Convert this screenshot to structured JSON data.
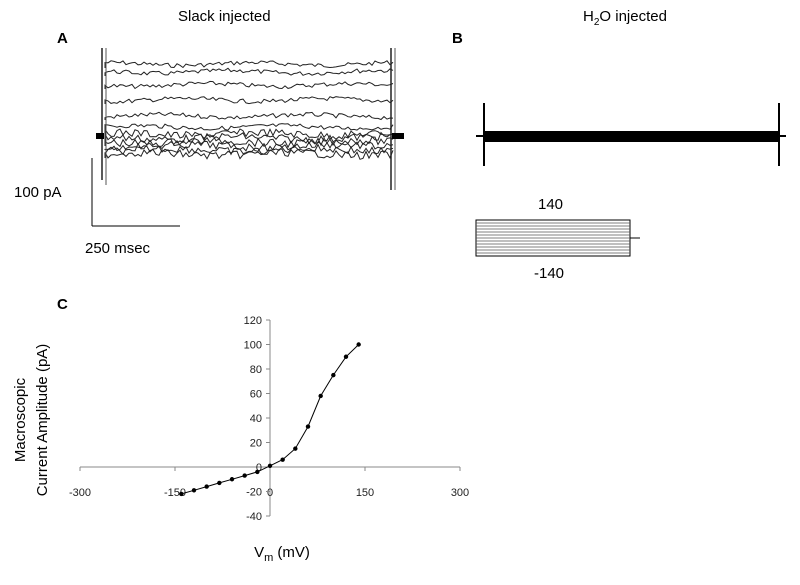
{
  "panel_a": {
    "letter": "A",
    "title": "Slack injected",
    "scale_current": "100 pA",
    "scale_time": "250 msec"
  },
  "panel_b": {
    "letter": "B",
    "title_prefix": "H",
    "title_sub": "2",
    "title_suffix": "O injected",
    "protocol_top": "140",
    "protocol_bottom": "-140"
  },
  "panel_c": {
    "letter": "C"
  },
  "chart_data": {
    "type": "line",
    "xlabel_main": "V",
    "xlabel_sub": "m",
    "xlabel_unit": " (mV)",
    "ylabel_line1": "Macroscopic",
    "ylabel_line2": "Current Amplitude (pA)",
    "xlim": [
      -300,
      300
    ],
    "ylim": [
      -40,
      120
    ],
    "x_ticks": [
      -300,
      -150,
      0,
      150,
      300
    ],
    "y_ticks": [
      -40,
      -20,
      0,
      20,
      40,
      60,
      80,
      100,
      120
    ],
    "series": [
      {
        "x": [
          -140,
          -120,
          -100,
          -80,
          -60,
          -40,
          -20,
          0,
          20,
          40,
          60,
          80,
          100,
          120,
          140
        ],
        "y": [
          -22,
          -19,
          -16,
          -13,
          -10,
          -7,
          -4,
          1,
          6,
          15,
          33,
          58,
          75,
          90,
          100
        ]
      }
    ]
  }
}
